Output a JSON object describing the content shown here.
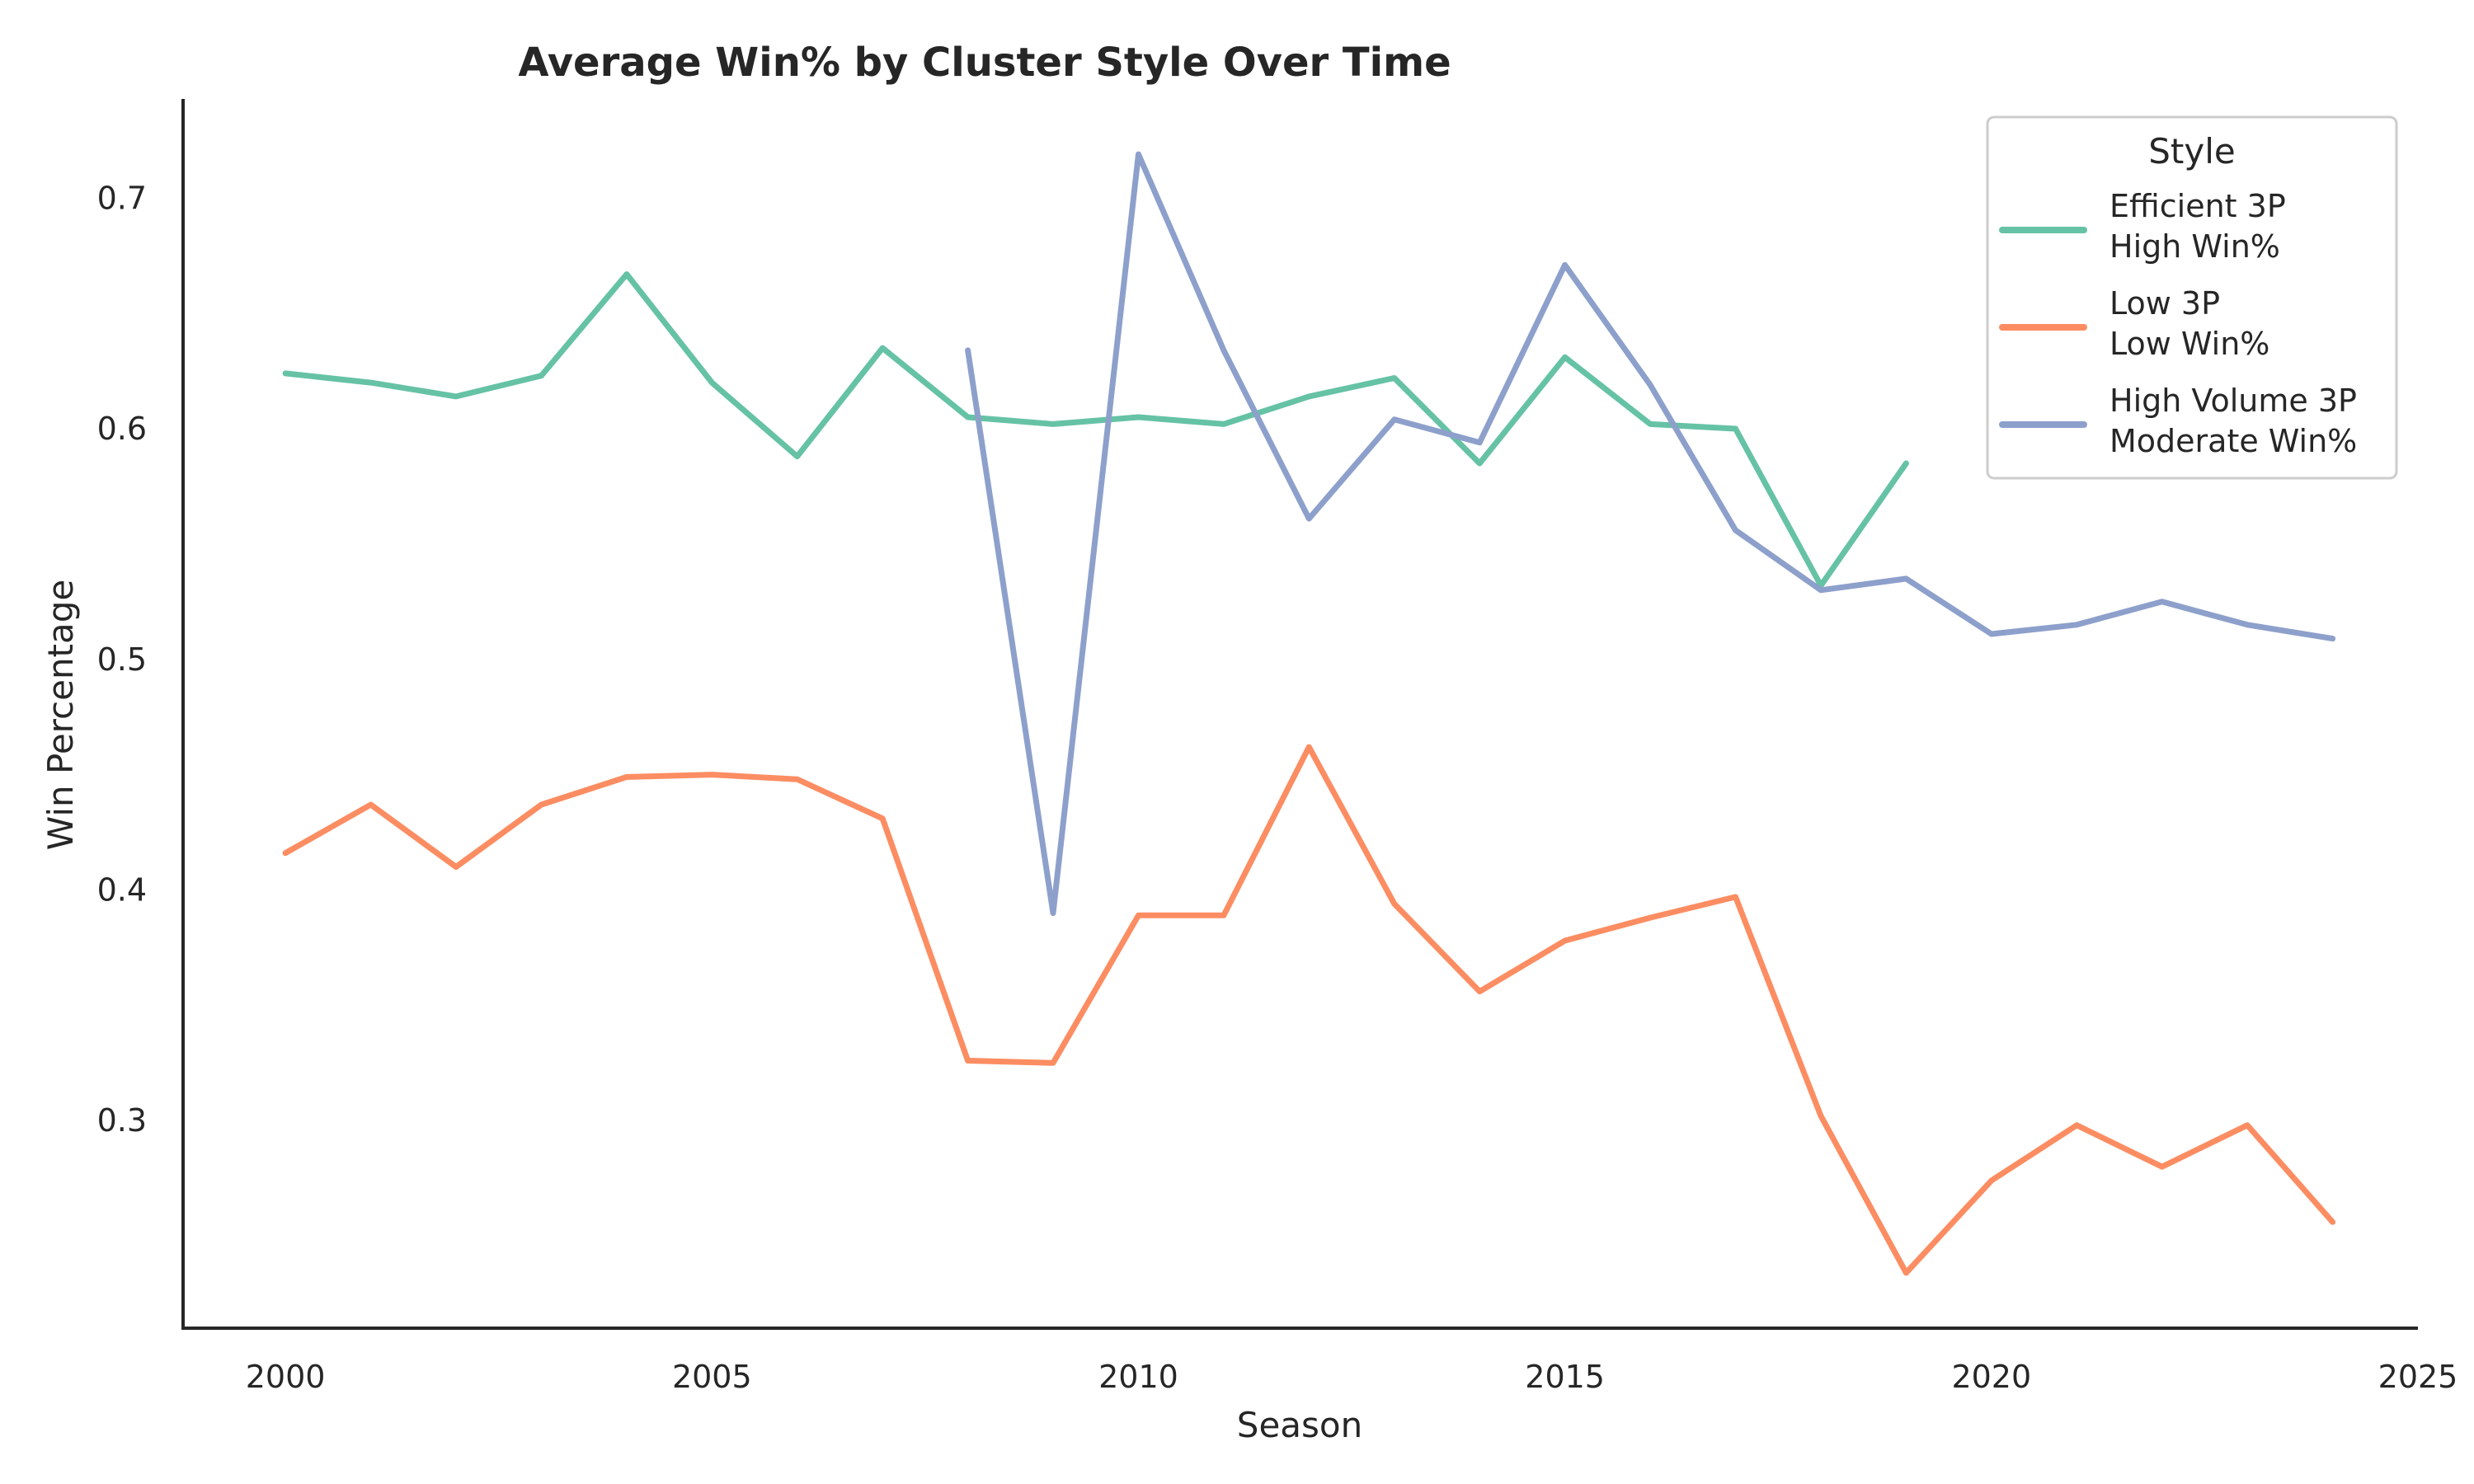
{
  "chart_data": {
    "type": "line",
    "title": "Average Win% by Cluster Style Over Time",
    "xlabel": "Season",
    "ylabel": "Win Percentage",
    "xlim": [
      1998.8,
      2025
    ],
    "ylim": [
      0.21,
      0.743
    ],
    "xticks": [
      2000,
      2005,
      2010,
      2015,
      2020,
      2025
    ],
    "yticks": [
      0.3,
      0.4,
      0.5,
      0.6,
      0.7
    ],
    "grid": false,
    "legend": {
      "title": "Style",
      "placement": "top-right"
    },
    "series": [
      {
        "name_lines": [
          "Efficient 3P",
          "High Win%"
        ],
        "color": "#66c2a5",
        "x": [
          2000,
          2001,
          2002,
          2003,
          2004,
          2005,
          2006,
          2007,
          2008,
          2009,
          2010,
          2011,
          2012,
          2013,
          2014,
          2015,
          2016,
          2017,
          2018,
          2019
        ],
        "y": [
          0.624,
          0.62,
          0.614,
          0.623,
          0.667,
          0.62,
          0.588,
          0.635,
          0.605,
          0.602,
          0.605,
          0.602,
          0.614,
          0.622,
          0.585,
          0.631,
          0.602,
          0.6,
          0.532,
          0.585
        ]
      },
      {
        "name_lines": [
          "Low 3P",
          "Low Win%"
        ],
        "color": "#fc8d62",
        "x": [
          2000,
          2001,
          2002,
          2003,
          2004,
          2005,
          2006,
          2007,
          2008,
          2009,
          2010,
          2011,
          2012,
          2013,
          2014,
          2015,
          2016,
          2017,
          2018,
          2019,
          2020,
          2021,
          2022,
          2023,
          2024
        ],
        "y": [
          0.416,
          0.437,
          0.41,
          0.437,
          0.449,
          0.45,
          0.448,
          0.431,
          0.326,
          0.325,
          0.389,
          0.389,
          0.462,
          0.394,
          0.356,
          0.378,
          0.388,
          0.397,
          0.302,
          0.234,
          0.274,
          0.298,
          0.28,
          0.298,
          0.256
        ]
      },
      {
        "name_lines": [
          "High Volume 3P",
          "Moderate Win%"
        ],
        "color": "#8da0cb",
        "x": [
          2008,
          2009,
          2010,
          2011,
          2012,
          2013,
          2014,
          2015,
          2016,
          2017,
          2018,
          2019,
          2020,
          2021,
          2022,
          2023,
          2024
        ],
        "y": [
          0.634,
          0.39,
          0.719,
          0.634,
          0.561,
          0.604,
          0.594,
          0.671,
          0.619,
          0.556,
          0.53,
          0.535,
          0.511,
          0.515,
          0.525,
          0.515,
          0.509
        ]
      }
    ]
  }
}
